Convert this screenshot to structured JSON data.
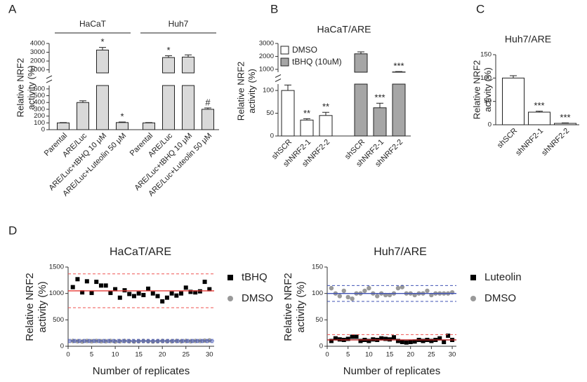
{
  "chart_data": [
    {
      "type": "bar",
      "label": "A",
      "ylabel": [
        "Relative NRF2",
        "activity (%)"
      ],
      "categories": [
        "Parental",
        "ARE/Luc",
        "ARE/Luc+tBHQ 10 μM",
        "ARE/Luc+Luteolin 50 μM"
      ],
      "series": [
        {
          "name": "HaCaT",
          "color": "#d9d9d9",
          "values": [
            100,
            400,
            3250,
            105
          ],
          "errors": [
            5,
            25,
            300,
            8
          ],
          "annotations": [
            null,
            null,
            "*",
            "*"
          ]
        },
        {
          "name": "Huh7",
          "color": "#d9d9d9",
          "values": [
            100,
            2400,
            2450,
            300
          ],
          "errors": [
            5,
            200,
            250,
            20
          ],
          "annotations": [
            null,
            "*",
            null,
            "#"
          ]
        }
      ],
      "ylim": [
        [
          0,
          650
        ],
        [
          650,
          4000
        ]
      ],
      "yticks": [
        [
          0,
          100,
          200,
          300,
          400,
          500,
          600
        ],
        [
          1000,
          2000,
          3000,
          4000
        ]
      ],
      "legend": "top"
    },
    {
      "type": "bar",
      "label": "B",
      "title": "HaCaT/ARE",
      "ylabel": [
        "Relative NRF2",
        "activity (%)"
      ],
      "categories": [
        "shSCR",
        "shNRF2-1",
        "shNRF2-2"
      ],
      "series": [
        {
          "name": "DMSO",
          "color": "#ffffff",
          "values": [
            100,
            35,
            45
          ],
          "errors": [
            12,
            3,
            7
          ],
          "annotations": [
            null,
            "**",
            "**"
          ]
        },
        {
          "name": "tBHQ (10uM)",
          "color": "#a6a6a6",
          "values": [
            2200,
            62,
            800
          ],
          "errors": [
            150,
            10,
            30
          ],
          "annotations": [
            null,
            "***",
            "***"
          ]
        }
      ],
      "ylim": [
        [
          0,
          114
        ],
        [
          780,
          3000
        ]
      ],
      "yticks": [
        [
          0,
          50,
          100
        ],
        [
          1000,
          2000,
          3000
        ]
      ],
      "legend": "upper left"
    },
    {
      "type": "bar",
      "label": "C",
      "title": "Huh7/ARE",
      "ylabel": [
        "Relative NRF2",
        "activity (%)"
      ],
      "categories": [
        "shSCR",
        "shNRF2-1",
        "shNRF2-2"
      ],
      "values": [
        100,
        27,
        3
      ],
      "errors": [
        5,
        2,
        1
      ],
      "annotations": [
        null,
        "***",
        "***"
      ],
      "color": "#ffffff",
      "ylim": [
        0,
        150
      ],
      "yticks": [
        0,
        50,
        100,
        150
      ]
    },
    {
      "type": "scatter",
      "label": "D",
      "title": "HaCaT/ARE",
      "ylabel": [
        "Relative NRF2",
        "activity (%)"
      ],
      "xlabel": "Number of replicates",
      "x": [
        1,
        2,
        3,
        4,
        5,
        6,
        7,
        8,
        9,
        10,
        11,
        12,
        13,
        14,
        15,
        16,
        17,
        18,
        19,
        20,
        21,
        22,
        23,
        24,
        25,
        26,
        27,
        28,
        29,
        30
      ],
      "series": [
        {
          "name": "tBHQ",
          "color": "#000000",
          "marker": "square",
          "values": [
            1120,
            1270,
            1020,
            1230,
            1010,
            1220,
            1150,
            1150,
            1010,
            1080,
            920,
            1060,
            990,
            950,
            1000,
            970,
            1090,
            1000,
            950,
            850,
            920,
            1000,
            960,
            1000,
            1110,
            1030,
            1020,
            1040,
            1220,
            1080
          ]
        },
        {
          "name": "DMSO",
          "color": "#999999",
          "marker": "circle",
          "values": [
            100,
            95,
            90,
            100,
            95,
            100,
            95,
            95,
            100,
            90,
            95,
            100,
            95,
            90,
            95,
            100,
            95,
            90,
            95,
            100,
            95,
            95,
            100,
            95,
            100,
            95,
            100,
            100,
            105,
            110
          ]
        }
      ],
      "hlines": [
        {
          "value": 1050,
          "color": "#e53935",
          "style": "solid"
        },
        {
          "value": 1370,
          "color": "#ef5350",
          "style": "dashed"
        },
        {
          "value": 730,
          "color": "#ef5350",
          "style": "dashed"
        },
        {
          "value": 100,
          "color": "#3f51b5",
          "style": "solid"
        },
        {
          "value": 130,
          "color": "#3f51b5",
          "style": "dashed"
        },
        {
          "value": 70,
          "color": "#3f51b5",
          "style": "dashed"
        }
      ],
      "xlim": [
        0,
        31
      ],
      "xticks": [
        0,
        5,
        10,
        15,
        20,
        25,
        30
      ],
      "ylim": [
        0,
        1500
      ],
      "yticks": [
        0,
        500,
        1000,
        1500
      ],
      "legend": "right"
    },
    {
      "type": "scatter",
      "title": "Huh7/ARE",
      "ylabel": [
        "Relative NRF2",
        "activity (%)"
      ],
      "xlabel": "Number of replicates",
      "x": [
        1,
        2,
        3,
        4,
        5,
        6,
        7,
        8,
        9,
        10,
        11,
        12,
        13,
        14,
        15,
        16,
        17,
        18,
        19,
        20,
        21,
        22,
        23,
        24,
        25,
        26,
        27,
        28,
        29,
        30
      ],
      "series": [
        {
          "name": "Luteolin",
          "color": "#000000",
          "marker": "square",
          "values": [
            10,
            15,
            13,
            12,
            14,
            18,
            18,
            10,
            12,
            10,
            13,
            12,
            15,
            14,
            13,
            17,
            10,
            8,
            7,
            8,
            9,
            12,
            10,
            12,
            10,
            12,
            15,
            8,
            20,
            12
          ]
        },
        {
          "name": "DMSO",
          "color": "#999999",
          "marker": "circle",
          "values": [
            110,
            100,
            95,
            105,
            93,
            90,
            100,
            100,
            105,
            110,
            100,
            95,
            100,
            97,
            97,
            100,
            110,
            112,
            100,
            100,
            97,
            100,
            100,
            105,
            97,
            100,
            100,
            100,
            100,
            102
          ]
        }
      ],
      "hlines": [
        {
          "value": 100,
          "color": "#3f51b5",
          "style": "solid"
        },
        {
          "value": 115,
          "color": "#3f51b5",
          "style": "dashed"
        },
        {
          "value": 85,
          "color": "#3f51b5",
          "style": "dashed"
        },
        {
          "value": 12,
          "color": "#b71c1c",
          "style": "solid"
        },
        {
          "value": 22,
          "color": "#ef5350",
          "style": "dashed"
        }
      ],
      "xlim": [
        0,
        31
      ],
      "xticks": [
        0,
        5,
        10,
        15,
        20,
        25,
        30
      ],
      "ylim": [
        0,
        150
      ],
      "yticks": [
        0,
        50,
        100,
        150
      ],
      "legend": "right"
    }
  ]
}
